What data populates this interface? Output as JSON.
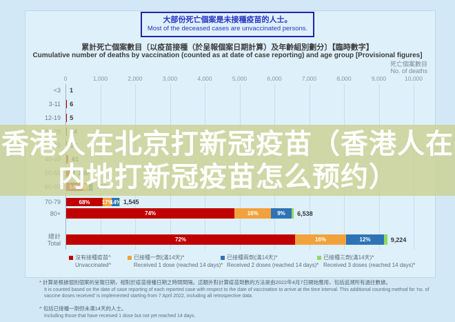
{
  "banner": {
    "zh": "大部份死亡個案是未接種疫苗的人士。",
    "en": "Most of the deceased cases are unvaccinated persons."
  },
  "watermark": {
    "line1": "香港人在北京打新冠疫苗（香港人在",
    "line2": "内地打新冠疫苗怎么预约）"
  },
  "chart_data": {
    "type": "bar",
    "orientation": "horizontal",
    "stacked": true,
    "title": "累計死亡個案數目〔以疫苗接種（於呈報個案日期計算）及年齡組別劃分〕【臨時數字】",
    "subtitle": "Cumulative number of deaths by vaccination (counted as at date of case reporting) and age group [Provisional figures]",
    "value_axis_label_zh": "死亡個案數目",
    "value_axis_label_en": "No. of deaths",
    "xlim": [
      0,
      10000
    ],
    "tick_labels": [
      "0",
      "1,000",
      "2,000",
      "3,000",
      "4,000",
      "5,000",
      "6,000",
      "7,000",
      "8,000",
      "9,000",
      "10,000"
    ],
    "grid": true,
    "legend_position": "bottom",
    "series_colors": {
      "unvaccinated": "#c00000",
      "dose1": "#f2a23c",
      "dose2": "#2e74b5",
      "dose3": "#92d962"
    },
    "rows": [
      {
        "label": "<3",
        "total": 1,
        "total_label": "1",
        "segments": [
          {
            "series": "unvaccinated",
            "frac": 1.0
          }
        ]
      },
      {
        "label": "3-11",
        "total": 6,
        "total_label": "6",
        "segments": [
          {
            "series": "unvaccinated",
            "frac": 1.0
          }
        ]
      },
      {
        "label": "12-19",
        "total": 5,
        "total_label": "5",
        "segments": [
          {
            "series": "unvaccinated",
            "frac": 1.0
          }
        ]
      },
      {
        "label": "20-29",
        "total": 14,
        "total_label": "14",
        "segments": [
          {
            "series": "unvaccinated",
            "frac": 1.0
          }
        ]
      },
      {
        "label": "30-39",
        "total": 26,
        "total_label": "26",
        "segments": [
          {
            "series": "unvaccinated",
            "frac": 1.0
          }
        ]
      },
      {
        "label": "40-49",
        "total": 61,
        "total_label": "61",
        "segments": [
          {
            "series": "unvaccinated",
            "frac": 1.0
          }
        ]
      },
      {
        "label": "50-59",
        "total": 250,
        "total_label": "250",
        "segments": [
          {
            "series": "unvaccinated",
            "frac": 0.7
          },
          {
            "series": "dose1",
            "frac": 0.1
          },
          {
            "series": "dose2",
            "frac": 0.12
          },
          {
            "series": "dose3",
            "frac": 0.08
          }
        ]
      },
      {
        "label": "60-69",
        "total": 778,
        "total_label": "778",
        "segments": [
          {
            "series": "unvaccinated",
            "frac": 0.64,
            "pct": "64%"
          },
          {
            "series": "dose1",
            "frac": 0.19,
            "pct": "19%"
          },
          {
            "series": "dose2",
            "frac": 0.13
          },
          {
            "series": "dose3",
            "frac": 0.04
          }
        ]
      },
      {
        "label": "70-79",
        "total": 1545,
        "total_label": "1,545",
        "segments": [
          {
            "series": "unvaccinated",
            "frac": 0.68,
            "pct": "68%"
          },
          {
            "series": "dose1",
            "frac": 0.17,
            "pct": "17%"
          },
          {
            "series": "dose2",
            "frac": 0.14,
            "pct": "14%"
          },
          {
            "series": "dose3",
            "frac": 0.01
          }
        ]
      },
      {
        "label": "80+",
        "total": 6538,
        "total_label": "6,538",
        "segments": [
          {
            "series": "unvaccinated",
            "frac": 0.74,
            "pct": "74%"
          },
          {
            "series": "dose1",
            "frac": 0.16,
            "pct": "16%"
          },
          {
            "series": "dose2",
            "frac": 0.09,
            "pct": "9%"
          },
          {
            "series": "dose3",
            "frac": 0.01
          }
        ]
      },
      {
        "label": "總計",
        "label2": "Total",
        "total": 9224,
        "total_label": "9,224",
        "segments": [
          {
            "series": "unvaccinated",
            "frac": 0.72,
            "pct": "72%"
          },
          {
            "series": "dose1",
            "frac": 0.16,
            "pct": "16%"
          },
          {
            "series": "dose2",
            "frac": 0.12,
            "pct": "12%"
          },
          {
            "series": "dose3",
            "frac": 0.01
          }
        ]
      }
    ]
  },
  "legend": [
    {
      "series": "unvaccinated",
      "color": "#c00000",
      "zh": "沒有接種疫苗^",
      "en": "Unvaccinated^"
    },
    {
      "series": "dose1",
      "color": "#f2a23c",
      "zh": "已接種一劑(滿14天)*",
      "en": "Received 1 dose (reached 14 days)*"
    },
    {
      "series": "dose2",
      "color": "#2e74b5",
      "zh": "已接種兩劑(滿14天)*",
      "en": "Received 2 doses (reached 14 days)*"
    },
    {
      "series": "dose3",
      "color": "#92d962",
      "zh": "已接種三劑(滿14天)*",
      "en": "Received 3 doses (reached 14 days)*"
    }
  ],
  "footnotes": {
    "note1_zh": "* 計算是根據個別個案的呈報日期，相對於疫苗接種日期之時間間隔。這額外對計算疫苗劑數的方法是由2022年4月7日開始應用，包括追溯所有過往數據。",
    "note1_en": "It is counted based on the date of case reporting of each reported case with respect to the date of vaccination to arrive at the time interval. This additional counting method for 'no. of vaccine doses received' is implemented starting from 7 April 2022, including all retrospective data.",
    "note2_zh": "^ 包括已接種一劑但未滿14天的人士。",
    "note2_en": "Including those that have received 1 dose but not yet reached 14 days."
  }
}
